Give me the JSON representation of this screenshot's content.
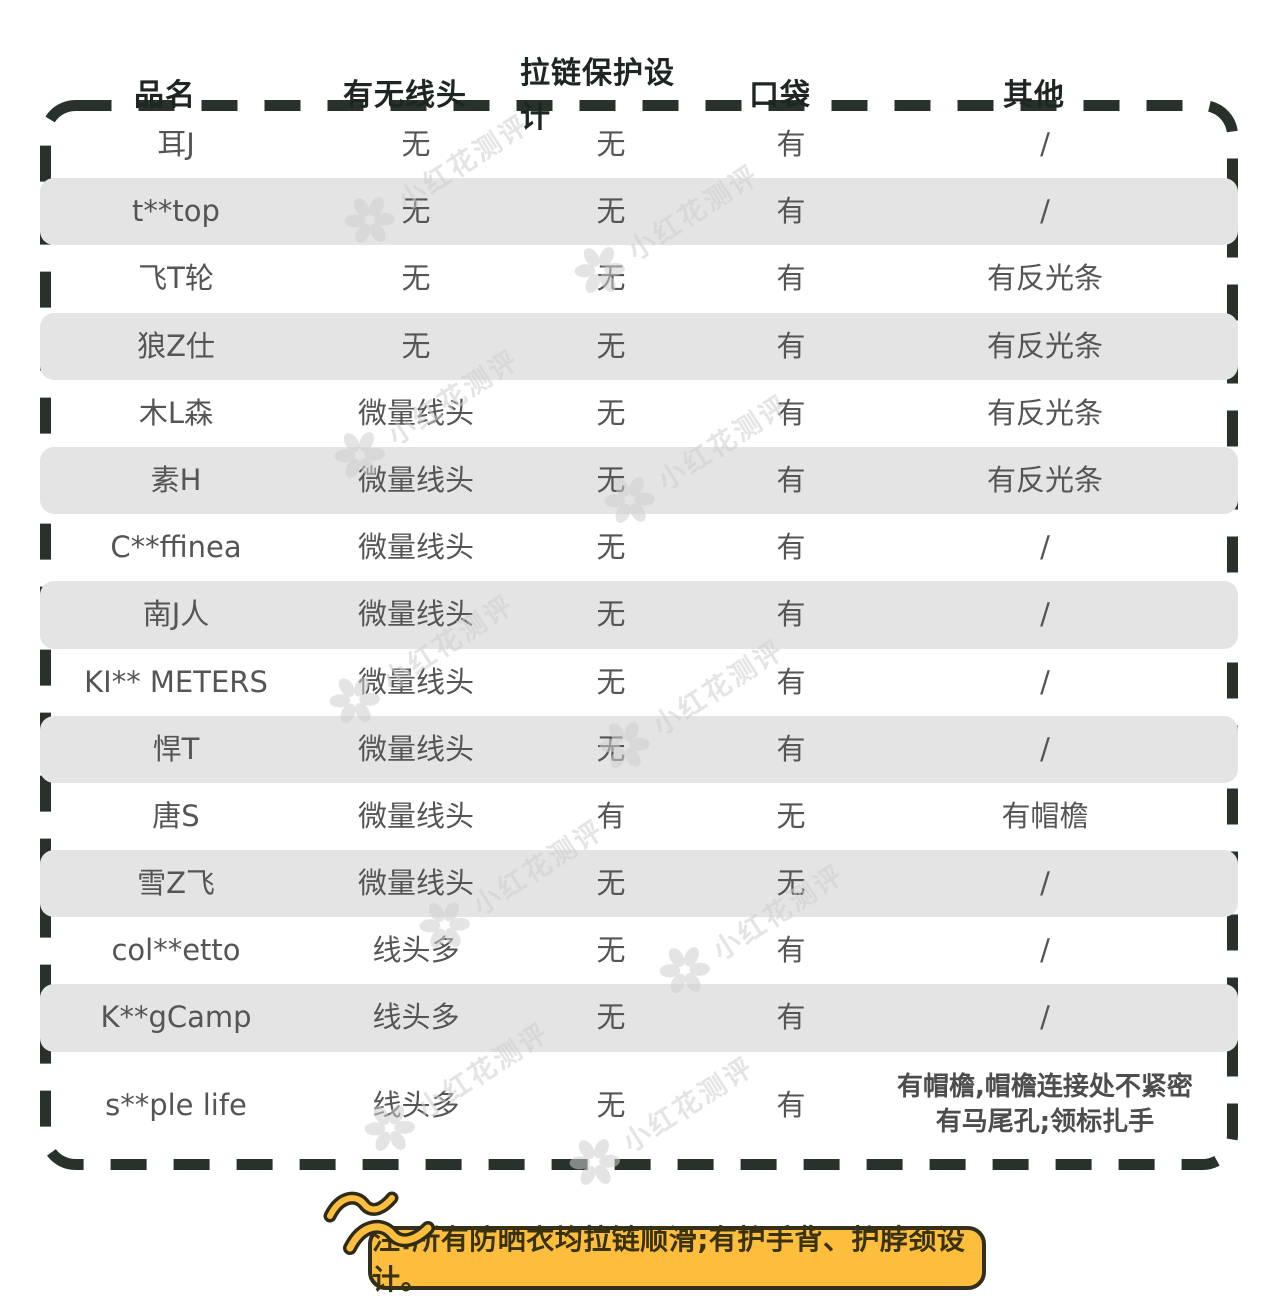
{
  "table": {
    "columns": [
      "品名",
      "有无线头",
      "拉链保护设计",
      "口袋",
      "其他"
    ],
    "rows": [
      {
        "name": "耳J",
        "thread": "无",
        "zipper": "无",
        "pocket": "有",
        "other": "/"
      },
      {
        "name": "t**top",
        "thread": "无",
        "zipper": "无",
        "pocket": "有",
        "other": "/"
      },
      {
        "name": "飞T轮",
        "thread": "无",
        "zipper": "无",
        "pocket": "有",
        "other": "有反光条"
      },
      {
        "name": "狼Z仕",
        "thread": "无",
        "zipper": "无",
        "pocket": "有",
        "other": "有反光条"
      },
      {
        "name": "木L森",
        "thread": "微量线头",
        "zipper": "无",
        "pocket": "有",
        "other": "有反光条"
      },
      {
        "name": "素H",
        "thread": "微量线头",
        "zipper": "无",
        "pocket": "有",
        "other": "有反光条"
      },
      {
        "name": "C**ffinea",
        "thread": "微量线头",
        "zipper": "无",
        "pocket": "有",
        "other": "/"
      },
      {
        "name": "南J人",
        "thread": "微量线头",
        "zipper": "无",
        "pocket": "有",
        "other": "/"
      },
      {
        "name": "KI** METERS",
        "thread": "微量线头",
        "zipper": "无",
        "pocket": "有",
        "other": "/"
      },
      {
        "name": "悍T",
        "thread": "微量线头",
        "zipper": "无",
        "pocket": "有",
        "other": "/"
      },
      {
        "name": "唐S",
        "thread": "微量线头",
        "zipper": "有",
        "pocket": "无",
        "other": "有帽檐"
      },
      {
        "name": "雪Z飞",
        "thread": "微量线头",
        "zipper": "无",
        "pocket": "无",
        "other": "/"
      },
      {
        "name": "col**etto",
        "thread": "线头多",
        "zipper": "无",
        "pocket": "有",
        "other": "/"
      },
      {
        "name": "K**gCamp",
        "thread": "线头多",
        "zipper": "无",
        "pocket": "有",
        "other": "/"
      },
      {
        "name": "s**ple life",
        "thread": "线头多",
        "zipper": "无",
        "pocket": "有",
        "other": "有帽檐,帽檐连接处不紧密\n有马尾孔;领标扎手"
      }
    ]
  },
  "note": {
    "text": "注:所有防晒衣均拉链顺滑;有护手背、护脖颈设计。"
  },
  "watermark": {
    "text": "小红花测评"
  },
  "colors": {
    "row_band": "#e4e4e4",
    "dashed_border": "#28322b",
    "header_text": "#1d2620",
    "cell_text": "#555555",
    "note_background": "#fcbe3c",
    "note_border": "#32301c",
    "note_text": "#3a320f",
    "watermark": "#cfcfcf"
  }
}
